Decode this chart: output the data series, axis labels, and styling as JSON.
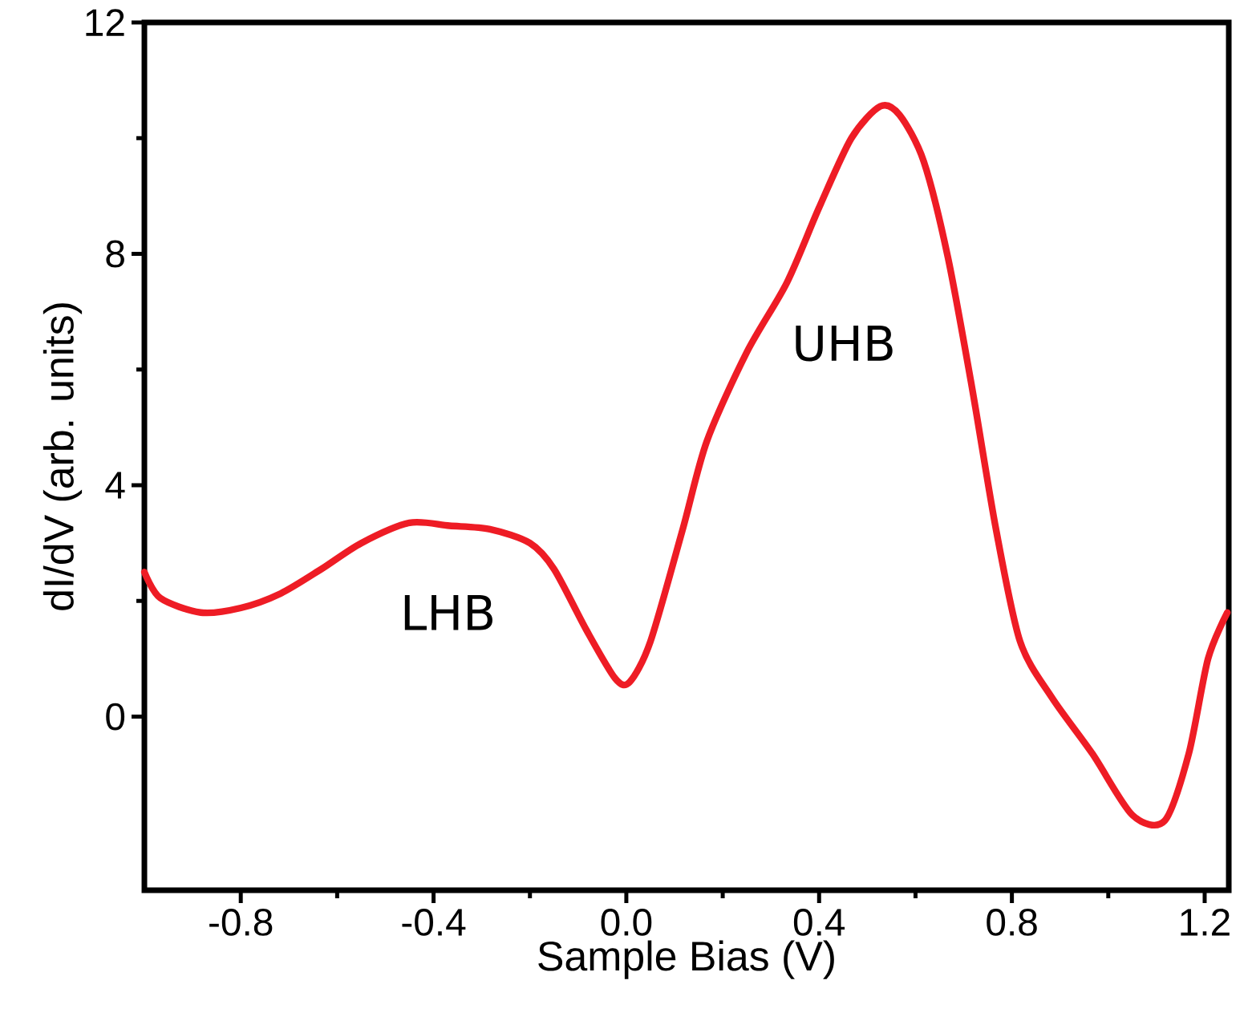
{
  "chart_data": {
    "type": "line",
    "xlabel": "Sample Bias (V)",
    "ylabel": "dI/dV (arb. units)",
    "xlim": [
      -1.0,
      1.25
    ],
    "ylim": [
      -3,
      12
    ],
    "xticks": [
      -0.8,
      -0.4,
      {
        "value": 0,
        "label": "0.0"
      },
      0.4,
      0.8,
      1.2
    ],
    "yticks": [
      0,
      4,
      8,
      12
    ],
    "marker": "none",
    "line_style": "solid",
    "series": [
      {
        "color": "#ee1c25",
        "x": [
          -1.0,
          -0.967,
          -0.883,
          -0.8,
          -0.717,
          -0.633,
          -0.55,
          -0.45,
          -0.367,
          -0.283,
          -0.2,
          -0.15,
          -0.083,
          -0.023,
          0.007,
          0.05,
          0.117,
          0.167,
          0.25,
          0.333,
          0.4,
          0.467,
          0.527,
          0.567,
          0.617,
          0.667,
          0.717,
          0.767,
          0.817,
          0.883,
          0.967,
          1.05,
          1.117,
          1.167,
          1.207,
          1.247
        ],
        "values": [
          2.5,
          2.05,
          1.8,
          1.88,
          2.13,
          2.55,
          3.0,
          3.35,
          3.3,
          3.24,
          3.0,
          2.55,
          1.5,
          0.66,
          0.6,
          1.3,
          3.24,
          4.76,
          6.3,
          7.5,
          8.8,
          10.0,
          10.55,
          10.4,
          9.6,
          7.95,
          5.7,
          3.24,
          1.3,
          0.33,
          -0.64,
          -1.7,
          -1.8,
          -0.64,
          1.0,
          1.8
        ]
      }
    ],
    "annotations": [
      "LHB",
      "UHB"
    ]
  }
}
